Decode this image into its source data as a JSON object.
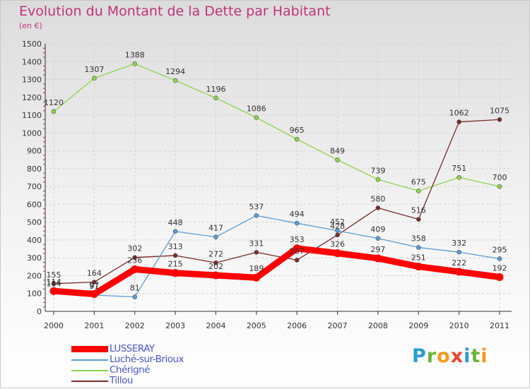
{
  "header": {
    "title": "Evolution du Montant de la Dette par Habitant",
    "subtitle": "(en €)"
  },
  "brand": {
    "letters": [
      "P",
      "r",
      "o",
      "x",
      "i",
      "t",
      "i"
    ],
    "colors": [
      "#2a9ad6",
      "#6bb33a",
      "#f29a1a",
      "#e8462b",
      "#2a9ad6",
      "#6bb33a",
      "#f29a1a"
    ]
  },
  "chart_data": {
    "type": "line",
    "title": "Evolution du Montant de la Dette par Habitant",
    "subtitle": "(en €)",
    "xlabel": "",
    "ylabel": "",
    "x": [
      "2000",
      "2001",
      "2002",
      "2003",
      "2004",
      "2005",
      "2006",
      "2007",
      "2008",
      "2009",
      "2010",
      "2011"
    ],
    "ylim": [
      0,
      1500
    ],
    "yticks": [
      0,
      100,
      200,
      300,
      400,
      500,
      600,
      700,
      800,
      900,
      1000,
      1100,
      1200,
      1300,
      1400,
      1500
    ],
    "grid": true,
    "legend_position": "bottom-left",
    "series": [
      {
        "name": "LUSSERAY",
        "color": "#ff0000",
        "values": [
          114,
          97,
          236,
          215,
          202,
          189,
          353,
          326,
          297,
          251,
          222,
          192
        ]
      },
      {
        "name": "Luché-sur-Brioux",
        "color": "#5b9bd5",
        "values": [
          104,
          91,
          81,
          448,
          417,
          537,
          494,
          452,
          409,
          358,
          332,
          295
        ]
      },
      {
        "name": "Chérigné",
        "color": "#8ed44a",
        "values": [
          1120,
          1307,
          1388,
          1294,
          1196,
          1086,
          965,
          849,
          739,
          675,
          751,
          700
        ]
      },
      {
        "name": "Tillou",
        "color": "#7a2a2a",
        "values": [
          155,
          164,
          302,
          313,
          272,
          331,
          287,
          428,
          580,
          516,
          1062,
          1075
        ]
      }
    ]
  }
}
